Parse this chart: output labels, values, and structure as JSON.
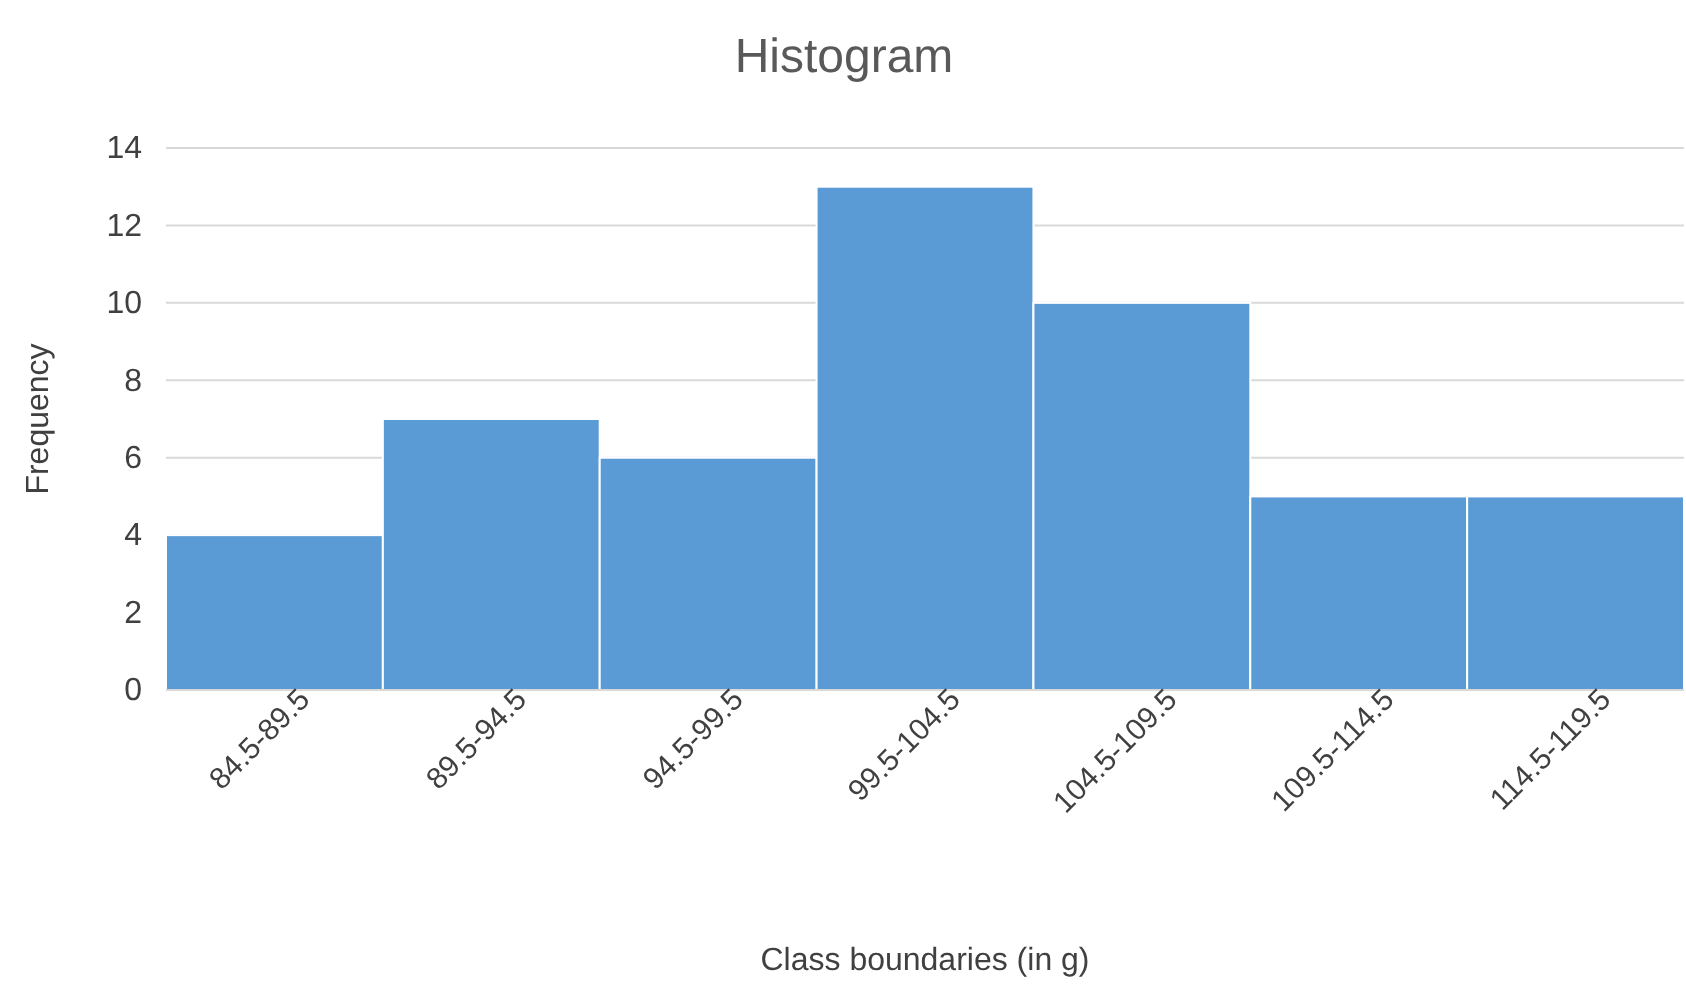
{
  "chart_data": {
    "type": "bar",
    "title": "Histogram",
    "xlabel": "Class boundaries (in g)",
    "ylabel": "Frequency",
    "categories": [
      "84.5-89.5",
      "89.5-94.5",
      "94.5-99.5",
      "99.5-104.5",
      "104.5-109.5",
      "109.5-114.5",
      "114.5-119.5"
    ],
    "values": [
      4,
      7,
      6,
      13,
      10,
      5,
      5
    ],
    "color": "#5b9bd5",
    "ylim": [
      0,
      14
    ],
    "yticks": [
      0,
      2,
      4,
      6,
      8,
      10,
      12,
      14
    ],
    "grid": "y",
    "legend": false
  }
}
